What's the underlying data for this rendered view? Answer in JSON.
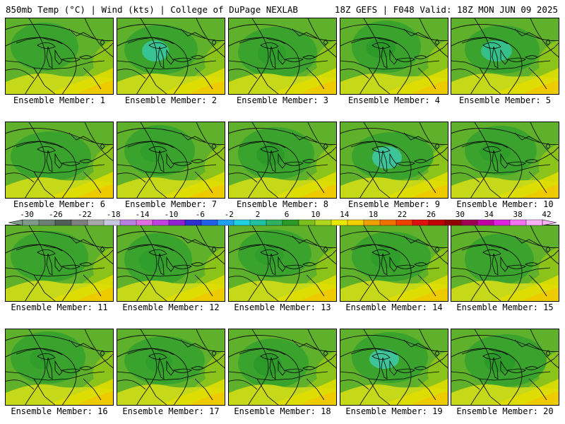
{
  "header": {
    "left": "850mb Temp (°C) | Wind (kts) | College of DuPage NEXLAB",
    "right": "18Z GEFS | F048 Valid: 18Z MON JUN 09 2025"
  },
  "members": [
    {
      "label": "Ensemble Member: 1",
      "blob": "#3aa32d"
    },
    {
      "label": "Ensemble Member: 2",
      "blob": "#37c394"
    },
    {
      "label": "Ensemble Member: 3",
      "blob": "#2f9e2a"
    },
    {
      "label": "Ensemble Member: 4",
      "blob": "#2b9a28"
    },
    {
      "label": "Ensemble Member: 5",
      "blob": "#35c08a"
    },
    {
      "label": "Ensemble Member: 6",
      "blob": "#3aa32d"
    },
    {
      "label": "Ensemble Member: 7",
      "blob": "#2f9e2a"
    },
    {
      "label": "Ensemble Member: 8",
      "blob": "#2b9a28"
    },
    {
      "label": "Ensemble Member: 9",
      "blob": "#3ec499"
    },
    {
      "label": "Ensemble Member: 10",
      "blob": "#2f9e2a"
    },
    {
      "label": "Ensemble Member: 11",
      "blob": "#3aa32d"
    },
    {
      "label": "Ensemble Member: 12",
      "blob": "#2f9e2a"
    },
    {
      "label": "Ensemble Member: 13",
      "blob": "#2f9e2a"
    },
    {
      "label": "Ensemble Member: 14",
      "blob": "#2f9e2a"
    },
    {
      "label": "Ensemble Member: 15",
      "blob": "#3aa32d"
    },
    {
      "label": "Ensemble Member: 16",
      "blob": "#2f9e2a"
    },
    {
      "label": "Ensemble Member: 17",
      "blob": "#2f9e2a"
    },
    {
      "label": "Ensemble Member: 18",
      "blob": "#2b9a28"
    },
    {
      "label": "Ensemble Member: 19",
      "blob": "#3ec499"
    },
    {
      "label": "Ensemble Member: 20",
      "blob": "#2b9a28"
    }
  ],
  "colorbar": {
    "labels": [
      "-30",
      "-26",
      "-22",
      "-18",
      "-14",
      "-10",
      "-6",
      "-2",
      "2",
      "6",
      "10",
      "14",
      "18",
      "22",
      "26",
      "30",
      "34",
      "38",
      "42"
    ],
    "colors": [
      "#7e9a8a",
      "#6b7f74",
      "#4f5f57",
      "#7f7f7f",
      "#a8a8a8",
      "#c8c8e0",
      "#b87ee0",
      "#e06ee0",
      "#c040e0",
      "#9020d0",
      "#3030d0",
      "#2060e8",
      "#20a0f0",
      "#20d0e0",
      "#20c0a0",
      "#30b060",
      "#2b9a28",
      "#7cc020",
      "#b0d820",
      "#e8e800",
      "#f0d000",
      "#f0a000",
      "#f07000",
      "#f04000",
      "#e01010",
      "#c00000",
      "#900000",
      "#a00050",
      "#c000a0",
      "#e020e0",
      "#f070f0",
      "#f8b0f8"
    ]
  }
}
